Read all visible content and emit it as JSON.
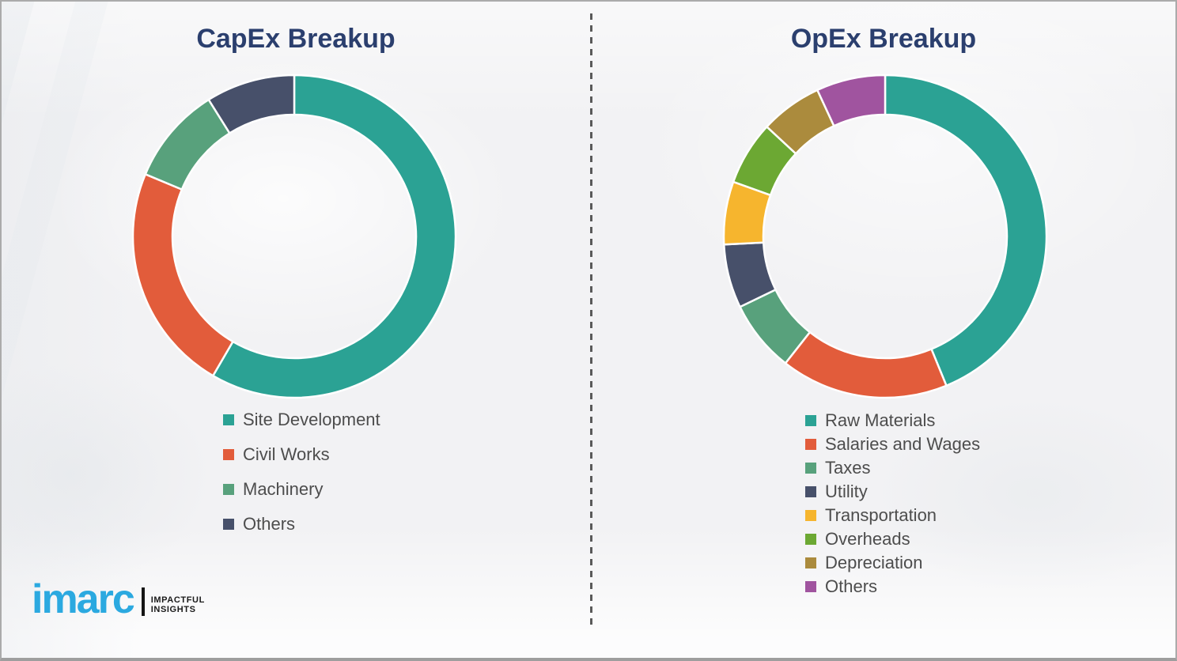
{
  "page": {
    "background_color": "#F2F2F4",
    "divider_style": "vertical-dashed",
    "divider_color": "#5A5A5A",
    "title_color": "#2B3F6E",
    "legend_text_color": "#4D4D4D"
  },
  "left_panel": {
    "title": "CapEx Breakup"
  },
  "right_panel": {
    "title": "OpEx Breakup"
  },
  "chart_data": [
    {
      "type": "pie",
      "subtype": "donut",
      "title": "CapEx Breakup",
      "categories": [
        "Site Development",
        "Civil Works",
        "Machinery",
        "Others"
      ],
      "values": [
        58.4,
        22.9,
        9.8,
        8.9
      ],
      "values_unit": "% (estimated from arc angles; no data labels shown)",
      "colors": [
        "#2BA294",
        "#E25C3B",
        "#58A17C",
        "#47506A"
      ],
      "start_angle_deg": 0,
      "direction": "clockwise",
      "inner_radius_ratio": 0.755,
      "segment_gap_color": "#FFFFFF",
      "legend_position": "below-left",
      "data_labels_shown": false
    },
    {
      "type": "pie",
      "subtype": "donut",
      "title": "OpEx Breakup",
      "categories": [
        "Raw Materials",
        "Salaries and Wages",
        "Taxes",
        "Utility",
        "Transportation",
        "Overheads",
        "Depreciation",
        "Others"
      ],
      "values": [
        43.8,
        16.8,
        7.2,
        6.4,
        6.3,
        6.4,
        6.2,
        6.9
      ],
      "values_unit": "% (estimated from arc angles; no data labels shown)",
      "colors": [
        "#2BA294",
        "#E25C3B",
        "#58A17C",
        "#47506A",
        "#F6B52E",
        "#6CA833",
        "#AB8B3D",
        "#A0549F"
      ],
      "start_angle_deg": 0,
      "direction": "clockwise",
      "inner_radius_ratio": 0.755,
      "segment_gap_color": "#FFFFFF",
      "legend_position": "below-left",
      "data_labels_shown": false
    }
  ],
  "logo": {
    "brand": "imarc",
    "brand_color": "#2BA9E0",
    "tagline_line1": "Impactful",
    "tagline_line2": "Insights"
  }
}
